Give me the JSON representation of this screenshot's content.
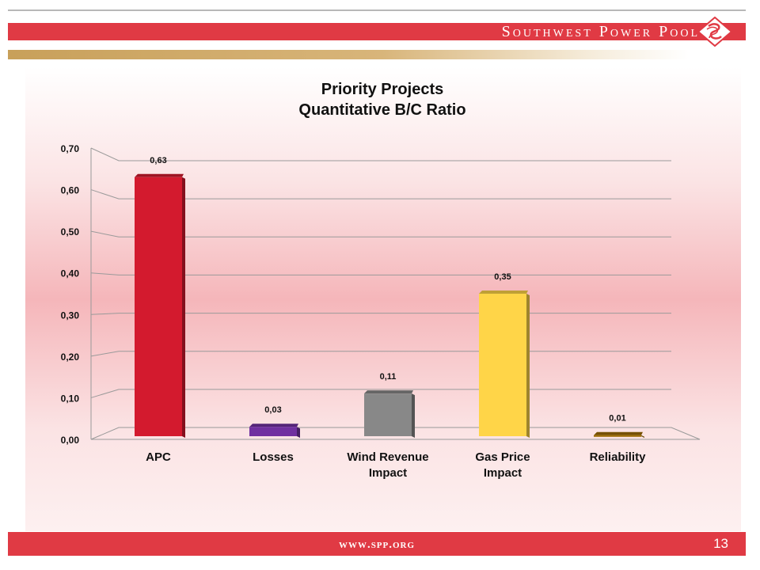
{
  "header": {
    "brand": "Southwest Power Pool"
  },
  "footer": {
    "url": "www.spp.org",
    "page_number": "13"
  },
  "chart_data": {
    "type": "bar",
    "title_line1": "Priority Projects",
    "title_line2": "Quantitative B/C Ratio",
    "categories": [
      [
        "APC"
      ],
      [
        "Losses"
      ],
      [
        "Wind Revenue",
        "Impact"
      ],
      [
        "Gas Price",
        "Impact"
      ],
      [
        "Reliability"
      ]
    ],
    "values": [
      0.63,
      0.03,
      0.11,
      0.35,
      0.01
    ],
    "value_labels": [
      "0,63",
      "0,03",
      "0,11",
      "0,35",
      "0,01"
    ],
    "colors": [
      "#d31a2e",
      "#7030a0",
      "#888888",
      "#ffd548",
      "#9c6b00"
    ],
    "y_ticks": [
      "0,00",
      "0,10",
      "0,20",
      "0,30",
      "0,40",
      "0,50",
      "0,60",
      "0,70"
    ],
    "ylim": [
      0,
      0.7
    ],
    "grid": true,
    "xlabel": "",
    "ylabel": ""
  }
}
